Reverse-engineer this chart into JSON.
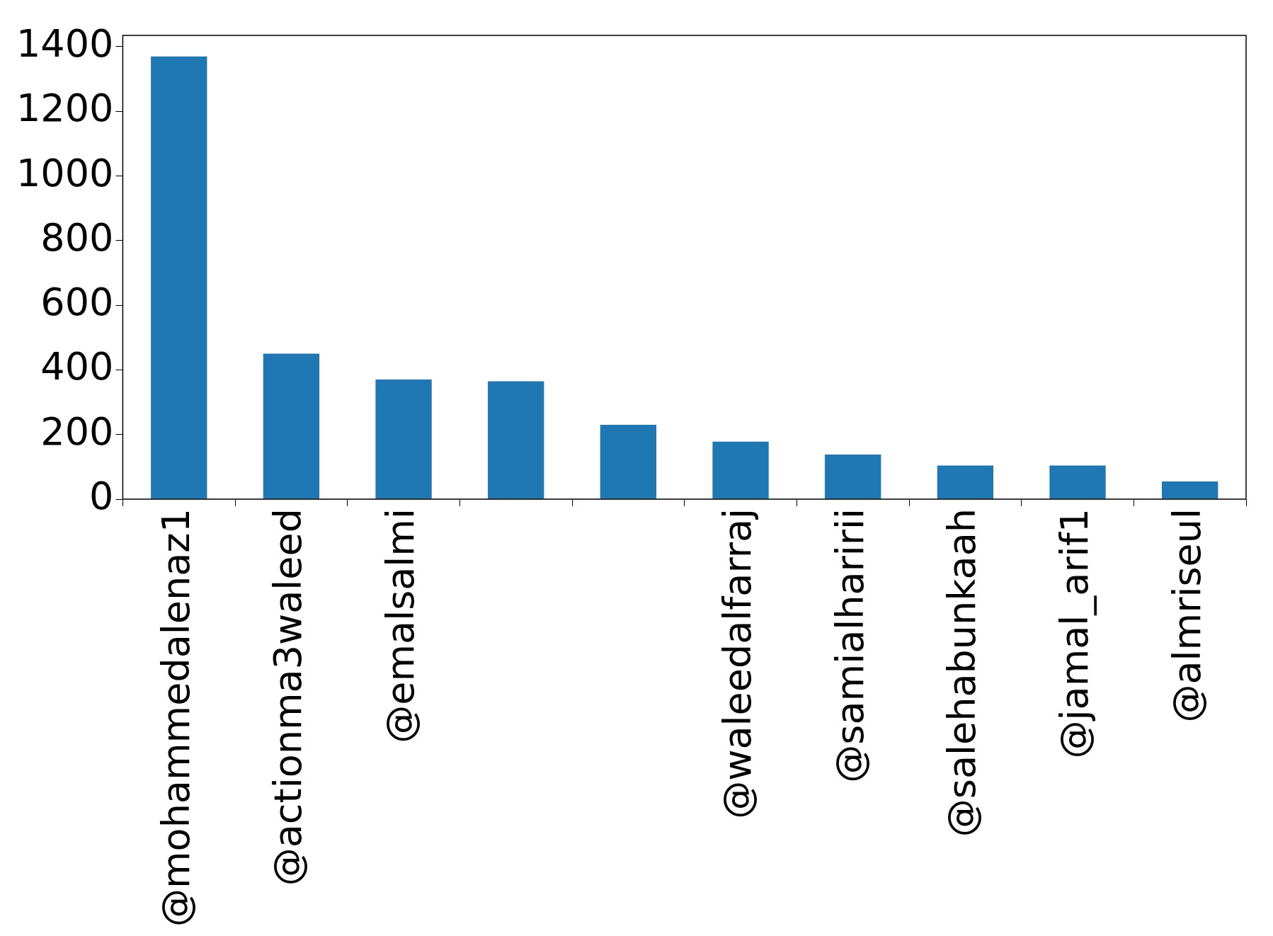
{
  "chart_data": {
    "type": "bar",
    "categories": [
      "@mohammedalenaz1",
      "@actionma3waleed",
      "@emalsalmi",
      null,
      null,
      "@waleedalfarraj",
      "@samialharirii",
      "@salehabunkaah",
      "@jamal_arif1",
      "@almriseul"
    ],
    "values": [
      1370,
      450,
      370,
      365,
      230,
      178,
      138,
      104,
      104,
      55
    ],
    "color": "#1f77b4",
    "ylim": [
      0,
      1435
    ],
    "yticks": [
      0,
      200,
      400,
      600,
      800,
      1000,
      1200,
      1400
    ],
    "grid": false,
    "legend": false
  }
}
